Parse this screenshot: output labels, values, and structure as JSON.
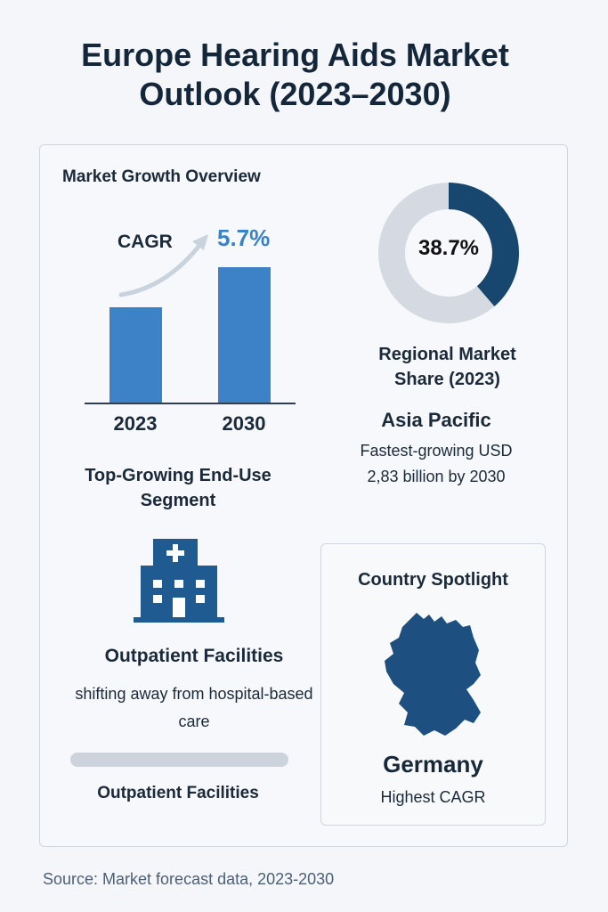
{
  "title": "Europe Hearing Aids Market Outlook (2023–2030)",
  "growth": {
    "heading": "Market Growth Overview",
    "cagr_label": "CAGR",
    "cagr_value": "5.7%",
    "bars": [
      {
        "year": "2023"
      },
      {
        "year": "2030"
      }
    ],
    "bar_color": "#3d82c6"
  },
  "segment": {
    "heading": "Top-Growing End-Use Segment",
    "icon": "hospital-icon",
    "name": "Outpatient Facilities",
    "description": "shifting away from hospital-based care",
    "bar_label": "Outpatient Facilities"
  },
  "regional": {
    "share_value": "38.7%",
    "share_fraction": 0.387,
    "label": "Regional Market Share (2023)",
    "region": "Asia Pacific",
    "description": "Fastest-growing USD 2,83 billion by 2030",
    "colors": {
      "highlight": "#17466e",
      "rest": "#d5dae2"
    }
  },
  "spotlight": {
    "heading": "Country Spotlight",
    "icon": "germany-map-icon",
    "country": "Germany",
    "note": "Highest CAGR"
  },
  "source": "Source: Market forecast data, 2023-2030"
}
